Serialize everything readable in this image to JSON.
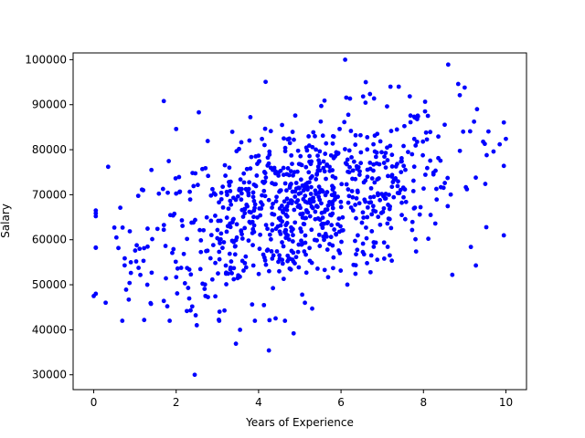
{
  "chart_data": {
    "type": "scatter",
    "title": "",
    "xlabel": "Years of Experience",
    "ylabel": "Salary",
    "xlim": [
      -0.5,
      10.5
    ],
    "ylim": [
      26700,
      101500
    ],
    "x_ticks": [
      0,
      2,
      4,
      6,
      8,
      10
    ],
    "x_tick_labels": [
      "0",
      "2",
      "4",
      "6",
      "8",
      "10"
    ],
    "y_ticks": [
      30000,
      40000,
      50000,
      60000,
      70000,
      80000,
      90000,
      100000
    ],
    "y_tick_labels": [
      "30000",
      "40000",
      "50000",
      "60000",
      "70000",
      "80000",
      "90000",
      "100000"
    ],
    "grid": false,
    "marker_color": "#0000ff",
    "points": {
      "count": 900,
      "x_mean": 5.0,
      "x_std": 1.9,
      "y_mean": 67500,
      "y_std": 10000,
      "notable": [
        [
          0.0,
          47500
        ],
        [
          0.35,
          76200
        ],
        [
          0.5,
          62700
        ],
        [
          0.55,
          60500
        ],
        [
          0.7,
          62700
        ],
        [
          0.75,
          54300
        ],
        [
          0.85,
          46700
        ],
        [
          0.9,
          55000
        ],
        [
          1.2,
          71000
        ],
        [
          1.3,
          50000
        ],
        [
          1.4,
          75500
        ],
        [
          1.7,
          90800
        ],
        [
          1.7,
          46400
        ],
        [
          2.0,
          84600
        ],
        [
          2.35,
          44300
        ],
        [
          2.45,
          30000
        ],
        [
          2.5,
          41000
        ],
        [
          2.55,
          88300
        ],
        [
          3.45,
          36900
        ],
        [
          3.55,
          40000
        ],
        [
          4.25,
          35400
        ],
        [
          4.85,
          39200
        ],
        [
          5.3,
          44700
        ],
        [
          6.1,
          100000
        ],
        [
          6.6,
          95000
        ],
        [
          7.2,
          94000
        ],
        [
          7.4,
          94000
        ],
        [
          8.6,
          98900
        ],
        [
          8.7,
          52200
        ],
        [
          9.0,
          93800
        ],
        [
          9.15,
          58400
        ],
        [
          9.3,
          89000
        ],
        [
          9.5,
          72400
        ],
        [
          9.7,
          79600
        ],
        [
          9.85,
          81200
        ],
        [
          10.0,
          82400
        ]
      ]
    }
  }
}
